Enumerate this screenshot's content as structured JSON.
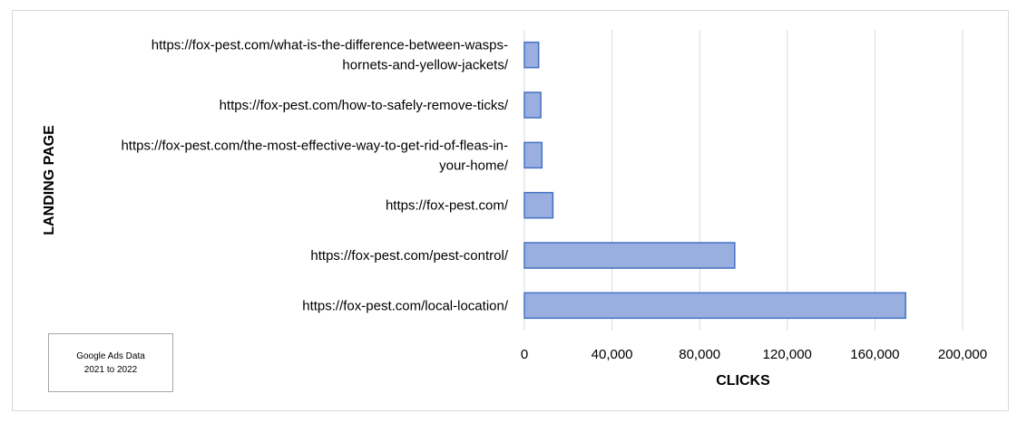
{
  "chart_data": {
    "type": "bar",
    "orientation": "horizontal",
    "categories": [
      "https://fox-pest.com/local-location/",
      "https://fox-pest.com/pest-control/",
      "https://fox-pest.com/",
      "https://fox-pest.com/the-most-effective-way-to-get-rid-of-fleas-in-your-home/",
      "https://fox-pest.com/how-to-safely-remove-ticks/",
      "https://fox-pest.com/what-is-the-difference-between-wasps-hornets-and-yellow-jackets/"
    ],
    "category_lines": [
      [
        "https://fox-pest.com/local-location/"
      ],
      [
        "https://fox-pest.com/pest-control/"
      ],
      [
        "https://fox-pest.com/"
      ],
      [
        "https://fox-pest.com/the-most-effective-way-to-get-rid-of-fleas-in-",
        "your-home/"
      ],
      [
        "https://fox-pest.com/how-to-safely-remove-ticks/"
      ],
      [
        "https://fox-pest.com/what-is-the-difference-between-wasps-",
        "hornets-and-yellow-jackets/"
      ]
    ],
    "values": [
      174000,
      96000,
      13000,
      8000,
      7500,
      6500
    ],
    "xlim": [
      0,
      200000
    ],
    "ticks": [
      0,
      40000,
      80000,
      120000,
      160000,
      200000
    ],
    "tick_labels": [
      "0",
      "40,000",
      "80,000",
      "120,000",
      "160,000",
      "200,000"
    ],
    "xlabel": "CLICKS",
    "ylabel": "LANDING PAGE",
    "grid": "vertical",
    "colors": {
      "bar_fill": "#9aaee0",
      "bar_stroke": "#4472c4",
      "grid": "#d9d9d9"
    }
  },
  "note": {
    "line1": "Google Ads Data",
    "line2": "2021 to 2022"
  }
}
